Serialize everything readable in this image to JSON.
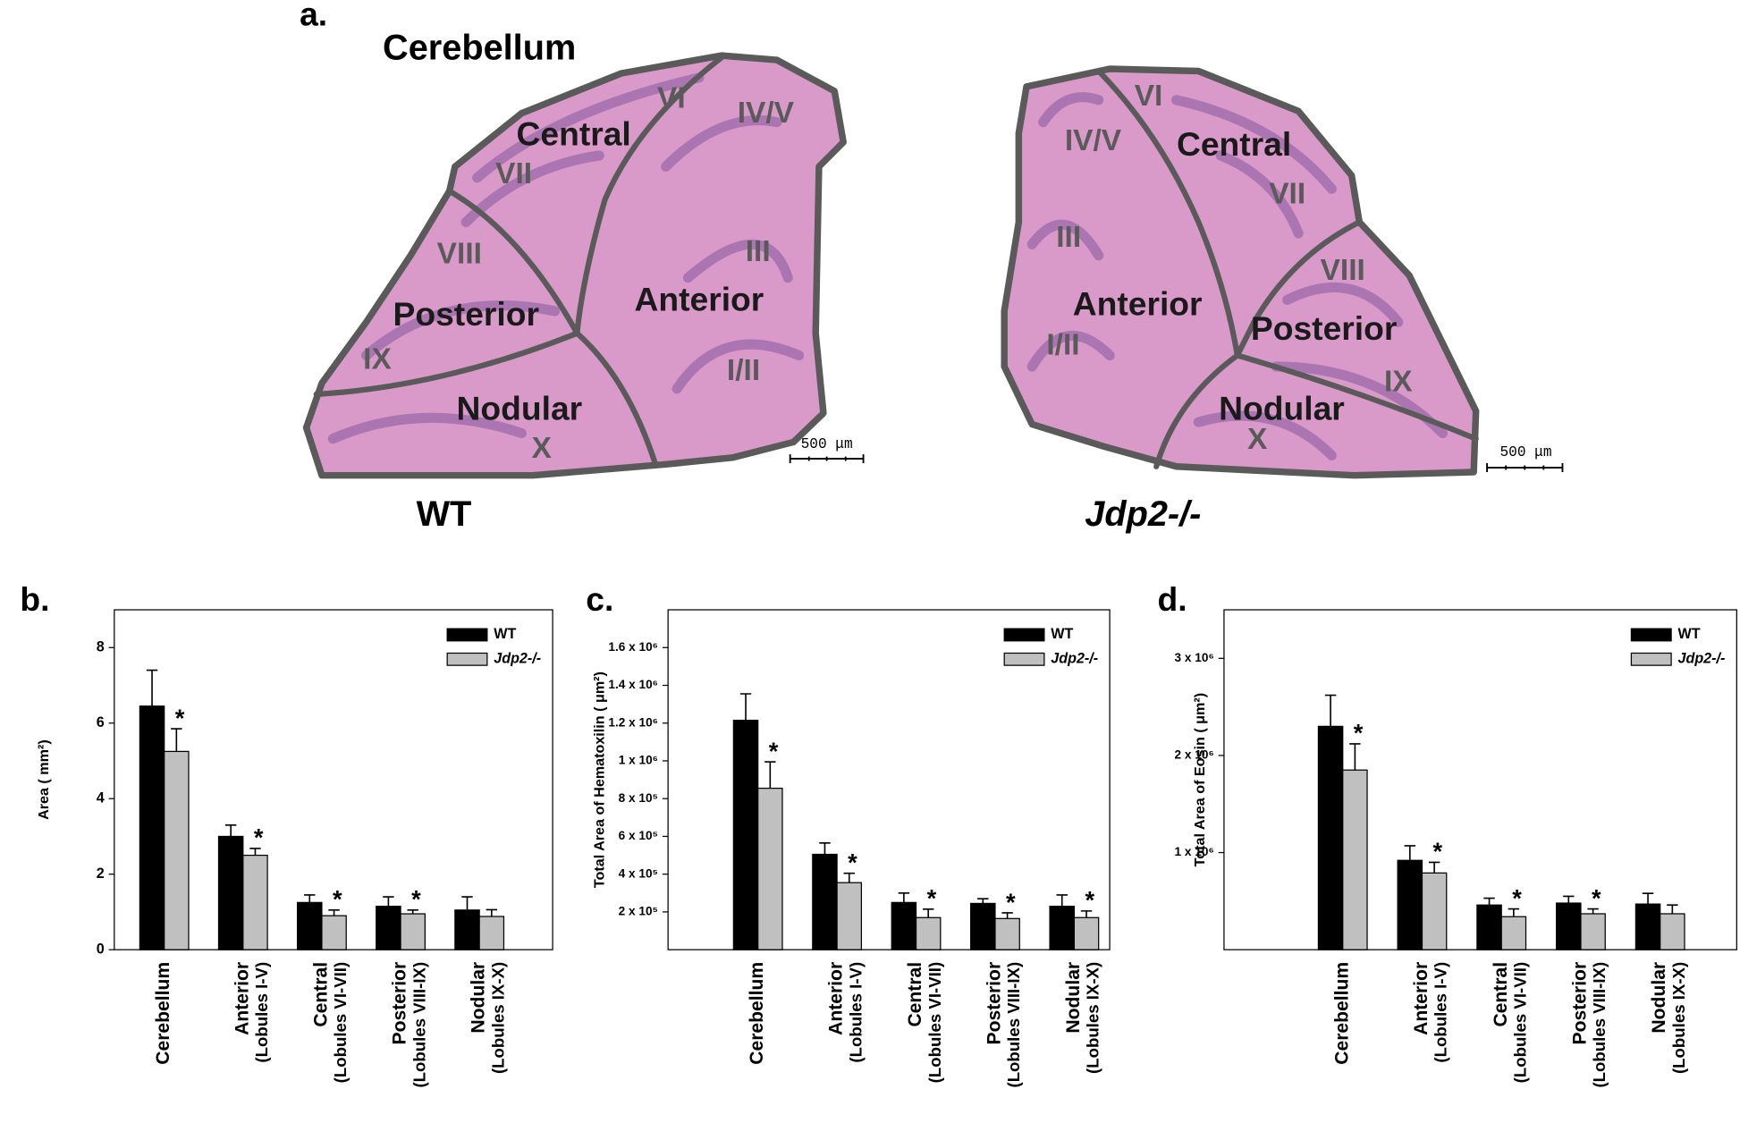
{
  "panel_a": {
    "label": "a.",
    "title": "Cerebellum",
    "left": {
      "caption": "WT",
      "scale_bar": "500 μm",
      "regions": [
        "Central",
        "Posterior",
        "Anterior",
        "Nodular"
      ],
      "lobules": [
        "VI",
        "IV/V",
        "VII",
        "VIII",
        "III",
        "IX",
        "I/II",
        "X"
      ]
    },
    "right": {
      "caption": "Jdp2-/-",
      "scale_bar": "500 μm",
      "regions": [
        "Central",
        "Anterior",
        "Posterior",
        "Nodular"
      ],
      "lobules": [
        "VI",
        "IV/V",
        "VII",
        "III",
        "VIII",
        "I/II",
        "IX",
        "X"
      ]
    }
  },
  "chart_data": [
    {
      "type": "bar",
      "panel_label": "b.",
      "y_label": "Area ( mm²)",
      "categories": [
        [
          "Cerebellum"
        ],
        [
          "Anterior",
          "(Lobules I-V)"
        ],
        [
          "Central",
          "(Lobules VI-VII)"
        ],
        [
          "Posterior",
          "(Lobules VIII-IX)"
        ],
        [
          "Nodular",
          "(Lobules IX-X)"
        ]
      ],
      "ylim": [
        0,
        9
      ],
      "yticks": [
        0,
        2,
        4,
        6,
        8
      ],
      "legend": "upper right",
      "series": [
        {
          "name": "WT",
          "color": "#000000",
          "values": [
            6.45,
            3.0,
            1.25,
            1.15,
            1.05
          ],
          "errors": [
            0.95,
            0.3,
            0.2,
            0.25,
            0.35
          ]
        },
        {
          "name": "Jdp2-/-",
          "color": "#c0c0c0",
          "values": [
            5.25,
            2.5,
            0.9,
            0.95,
            0.88
          ],
          "errors": [
            0.6,
            0.18,
            0.15,
            0.1,
            0.18
          ],
          "significance": [
            "*",
            "*",
            "*",
            "*",
            null
          ]
        }
      ]
    },
    {
      "type": "bar",
      "panel_label": "c.",
      "y_label": "Total Area of Hematoxilin ( μm²)",
      "categories": [
        [
          "Cerebellum"
        ],
        [
          "Anterior",
          "(Lobules I-V)"
        ],
        [
          "Central",
          "(Lobules VI-VII)"
        ],
        [
          "Posterior",
          "(Lobules VIII-IX)"
        ],
        [
          "Nodular",
          "(Lobules IX-X)"
        ]
      ],
      "ylim": [
        0,
        1800000
      ],
      "yticks": [
        {
          "value": 200000,
          "label": "2 x 10⁵"
        },
        {
          "value": 400000,
          "label": "4 x 10⁵"
        },
        {
          "value": 600000,
          "label": "6 x 10⁵"
        },
        {
          "value": 800000,
          "label": "8 x 10⁵"
        },
        {
          "value": 1000000,
          "label": "1 x 10⁶"
        },
        {
          "value": 1200000,
          "label": "1.2 x 10⁶"
        },
        {
          "value": 1400000,
          "label": "1.4 x 10⁶"
        },
        {
          "value": 1600000,
          "label": "1.6 x 10⁶"
        }
      ],
      "legend": "upper right",
      "series": [
        {
          "name": "WT",
          "color": "#000000",
          "values": [
            1215000,
            505000,
            250000,
            245000,
            230000
          ],
          "errors": [
            140000,
            60000,
            50000,
            25000,
            60000
          ]
        },
        {
          "name": "Jdp2-/-",
          "color": "#c0c0c0",
          "values": [
            855000,
            355000,
            170000,
            165000,
            170000
          ],
          "errors": [
            140000,
            50000,
            45000,
            30000,
            35000
          ],
          "significance": [
            "*",
            "*",
            "*",
            "*",
            "*"
          ]
        }
      ]
    },
    {
      "type": "bar",
      "panel_label": "d.",
      "y_label": "Total Area of Eosin ( μm²)",
      "categories": [
        [
          "Cerebellum"
        ],
        [
          "Anterior",
          "(Lobules I-V)"
        ],
        [
          "Central",
          "(Lobules VI-VII)"
        ],
        [
          "Posterior",
          "(Lobules VIII-IX)"
        ],
        [
          "Nodular",
          "(Lobules IX-X)"
        ]
      ],
      "ylim": [
        0,
        3500000
      ],
      "yticks": [
        {
          "value": 1000000,
          "label": "1 x 10⁶"
        },
        {
          "value": 2000000,
          "label": "2 x 10⁶"
        },
        {
          "value": 3000000,
          "label": "3 x 10⁶"
        }
      ],
      "legend": "upper right",
      "series": [
        {
          "name": "WT",
          "color": "#000000",
          "values": [
            2300000,
            920000,
            460000,
            480000,
            470000
          ],
          "errors": [
            320000,
            150000,
            70000,
            70000,
            110000
          ]
        },
        {
          "name": "Jdp2-/-",
          "color": "#c0c0c0",
          "values": [
            1850000,
            790000,
            340000,
            370000,
            370000
          ],
          "errors": [
            270000,
            110000,
            80000,
            50000,
            90000
          ],
          "significance": [
            "*",
            "*",
            "*",
            "*",
            null
          ]
        }
      ]
    }
  ]
}
